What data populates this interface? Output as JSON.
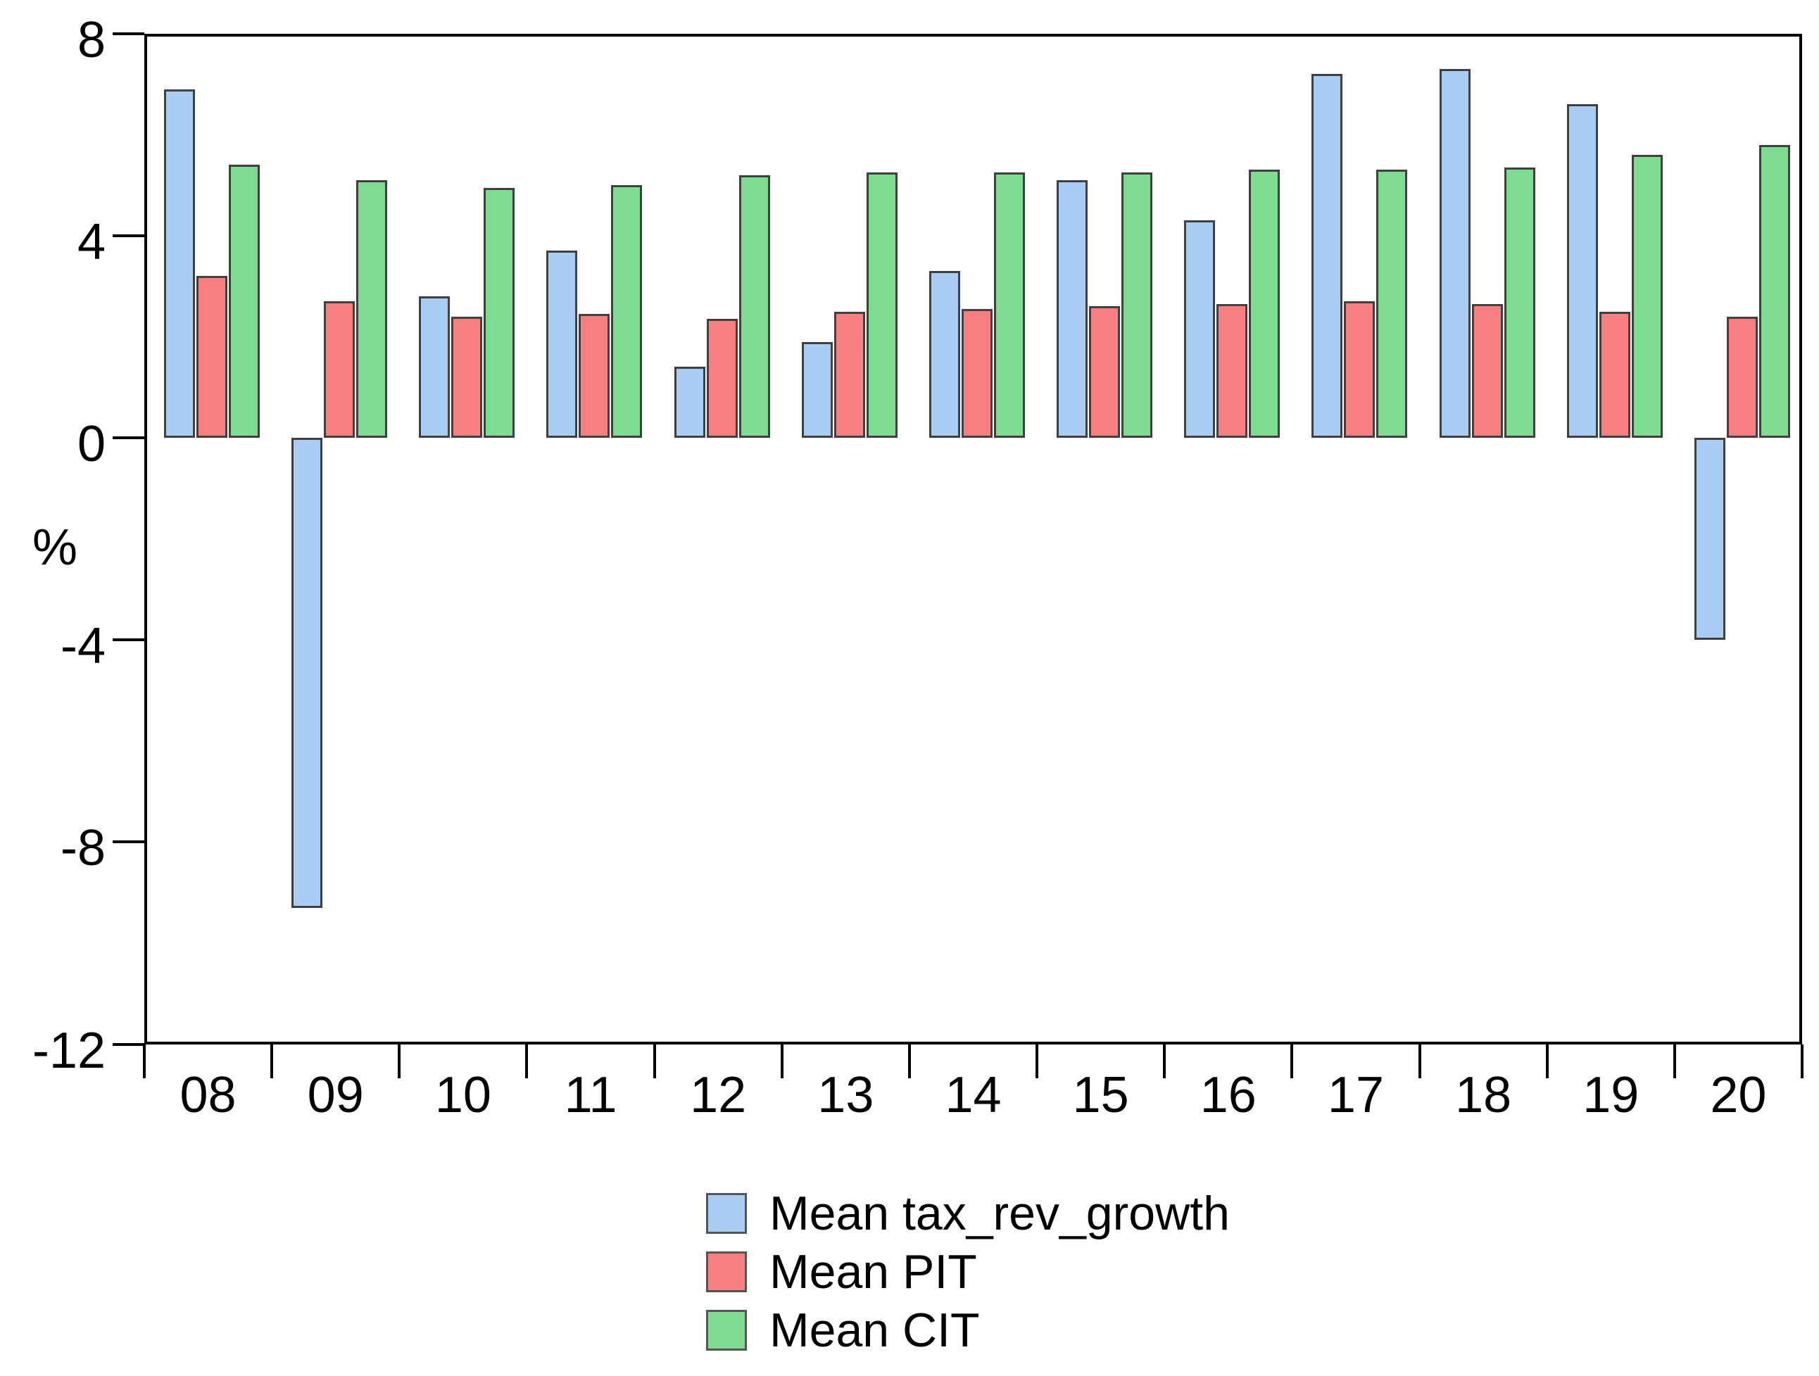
{
  "figure": {
    "background_color": "#ffffff",
    "axis_color": "#000000"
  },
  "chart_data": {
    "type": "bar",
    "title": "",
    "xlabel": "",
    "ylabel": "%",
    "categories": [
      "08",
      "09",
      "10",
      "11",
      "12",
      "13",
      "14",
      "15",
      "16",
      "17",
      "18",
      "19",
      "20"
    ],
    "series": [
      {
        "name": "Mean tax_rev_growth",
        "color": "#A9CCF5",
        "values": [
          6.9,
          -9.3,
          2.8,
          3.7,
          1.4,
          1.9,
          3.3,
          5.1,
          4.3,
          7.2,
          7.3,
          6.6,
          -4.0
        ]
      },
      {
        "name": "Mean PIT",
        "color": "#F87F80",
        "values": [
          3.2,
          2.7,
          2.4,
          2.45,
          2.35,
          2.5,
          2.55,
          2.6,
          2.65,
          2.7,
          2.65,
          2.5,
          2.4
        ]
      },
      {
        "name": "Mean CIT",
        "color": "#7EDC90",
        "values": [
          5.4,
          5.1,
          4.95,
          5.0,
          5.2,
          5.25,
          5.25,
          5.25,
          5.3,
          5.3,
          5.35,
          5.6,
          5.8
        ]
      }
    ],
    "y_ticks": [
      8,
      4,
      0,
      -4,
      -8,
      -12
    ],
    "ylim": [
      -12,
      8
    ],
    "grid": false,
    "legend_position": "bottom-center",
    "bar_border_color": "#404040",
    "legend_swatch_border_color": "#555555"
  }
}
